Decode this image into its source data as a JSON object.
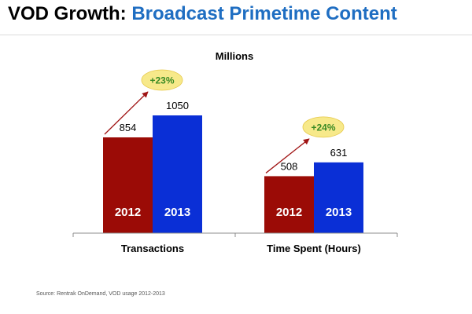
{
  "title": {
    "part1": "VOD Growth:",
    "part2": "Broadcast Primetime Content"
  },
  "source": "Source: Rentrak OnDemand, VOD usage 2012-2013",
  "chart_data": {
    "type": "bar",
    "title": "Millions",
    "categories": [
      "Transactions",
      "Time Spent (Hours)"
    ],
    "series": [
      {
        "name": "2012",
        "values": [
          854,
          508
        ],
        "color": "#9b0b06"
      },
      {
        "name": "2013",
        "values": [
          1050,
          631
        ],
        "color": "#0a2fd6"
      }
    ],
    "growth_labels": [
      "+23%",
      "+24%"
    ],
    "ylim": [
      0,
      1050
    ],
    "grid": false,
    "legend": "none",
    "accent_colors": {
      "badge_fill": "#f7e98a",
      "badge_text": "#3a8a24",
      "arrow": "#a01414"
    }
  }
}
